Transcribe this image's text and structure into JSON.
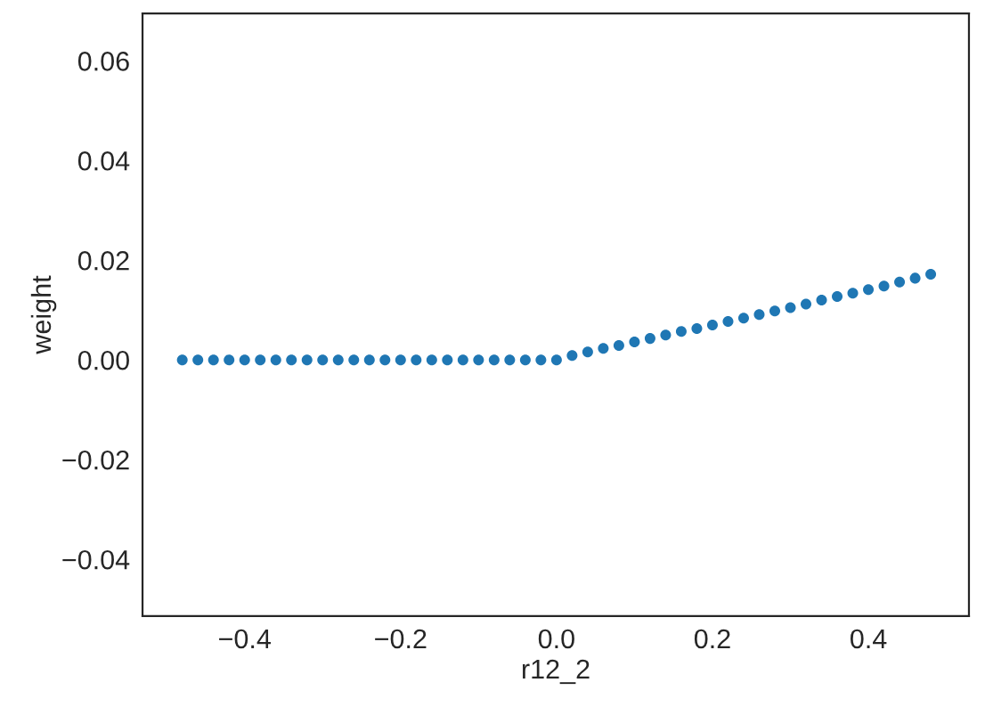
{
  "chart_data": {
    "type": "scatter",
    "xlabel": "r12_2",
    "ylabel": "weight",
    "x": [
      -0.48,
      -0.46,
      -0.44,
      -0.42,
      -0.4,
      -0.38,
      -0.36,
      -0.34,
      -0.32,
      -0.3,
      -0.28,
      -0.26,
      -0.24,
      -0.22,
      -0.2,
      -0.18,
      -0.16,
      -0.14,
      -0.12,
      -0.1,
      -0.08,
      -0.06,
      -0.04,
      -0.02,
      0.0,
      0.02,
      0.04,
      0.06,
      0.08,
      0.1,
      0.12,
      0.14,
      0.16,
      0.18,
      0.2,
      0.22,
      0.24,
      0.26,
      0.28,
      0.3,
      0.32,
      0.34,
      0.36,
      0.38,
      0.4,
      0.42,
      0.44,
      0.46,
      0.48
    ],
    "series": [
      {
        "color": "#1f77b4",
        "values": [
          0,
          0,
          0,
          0,
          0,
          0,
          0,
          0,
          0,
          0,
          0,
          0,
          0,
          0,
          0,
          0,
          0,
          0,
          0,
          0,
          0,
          0,
          0,
          0,
          0,
          0.0009,
          0.0016,
          0.0023,
          0.0029,
          0.0036,
          0.0043,
          0.005,
          0.0057,
          0.0063,
          0.007,
          0.0077,
          0.0084,
          0.0091,
          0.0098,
          0.0105,
          0.0112,
          0.012,
          0.0127,
          0.0134,
          0.0141,
          0.0148,
          0.0156,
          0.0164,
          0.0172
        ]
      }
    ],
    "marker": "circle",
    "xlim": [
      -0.531,
      0.529
    ],
    "ylim": [
      -0.0514,
      0.0695
    ],
    "xticks": [
      {
        "value": -0.4,
        "label": "−0.4"
      },
      {
        "value": -0.2,
        "label": "−0.2"
      },
      {
        "value": 0.0,
        "label": "0.0"
      },
      {
        "value": 0.2,
        "label": "0.2"
      },
      {
        "value": 0.4,
        "label": "0.4"
      }
    ],
    "yticks": [
      {
        "value": -0.04,
        "label": "−0.04"
      },
      {
        "value": -0.02,
        "label": "−0.02"
      },
      {
        "value": 0.0,
        "label": "0.00"
      },
      {
        "value": 0.02,
        "label": "0.02"
      },
      {
        "value": 0.04,
        "label": "0.04"
      },
      {
        "value": 0.06,
        "label": "0.06"
      }
    ]
  }
}
